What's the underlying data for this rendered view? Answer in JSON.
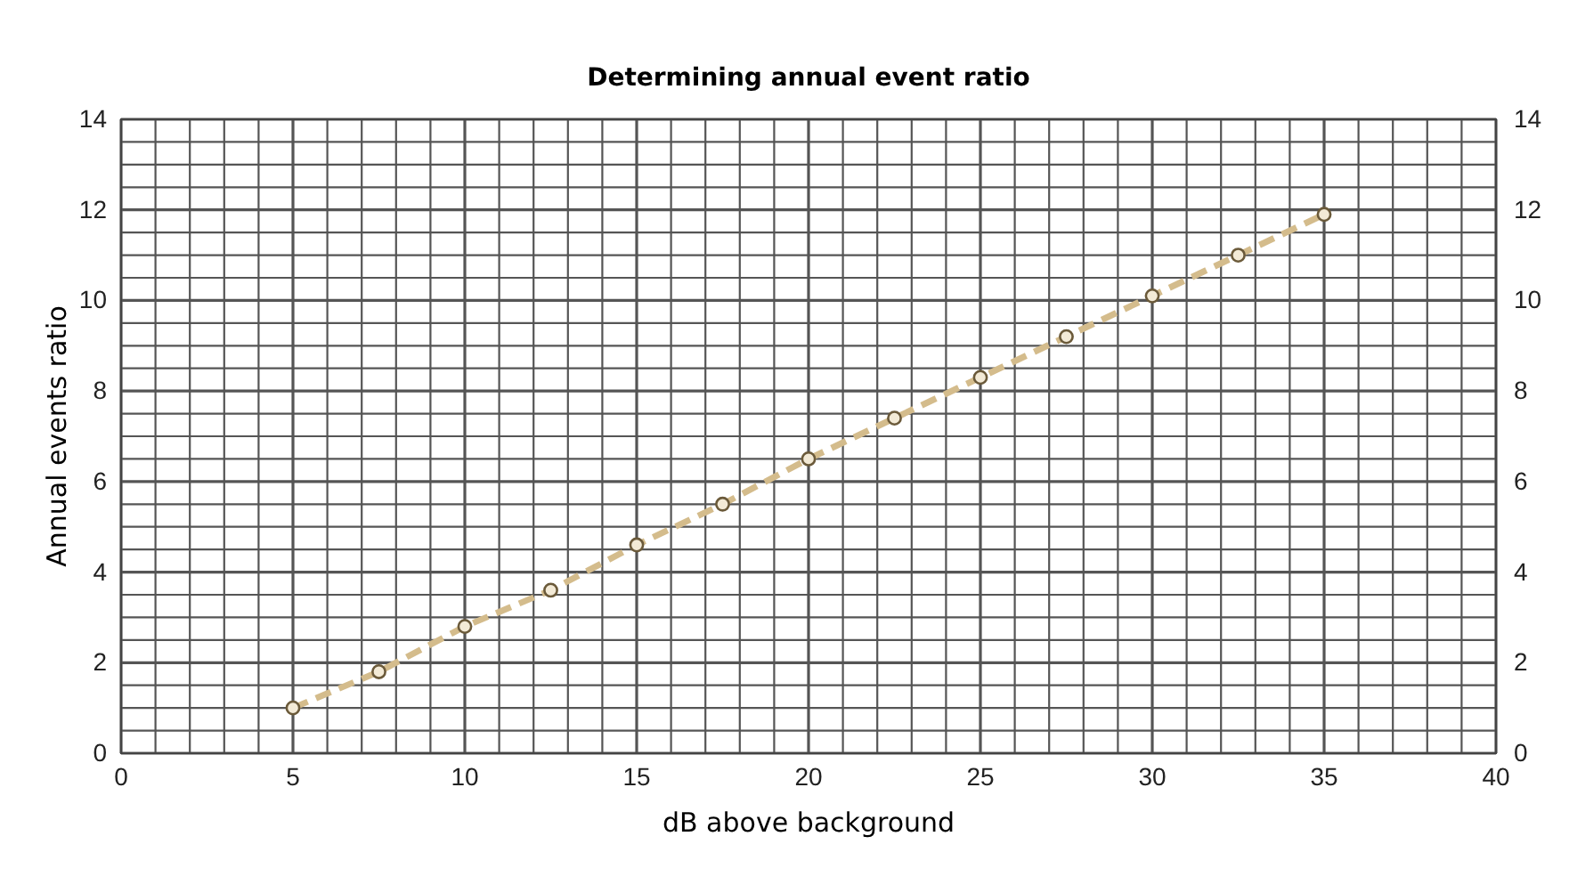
{
  "chart_data": {
    "type": "line",
    "title": "Determining annual event ratio",
    "xlabel": "dB above background",
    "ylabel": "Annual events ratio",
    "x": [
      5,
      7.5,
      10,
      12.5,
      15,
      17.5,
      20,
      22.5,
      25,
      27.5,
      30,
      32.5,
      35
    ],
    "series": [
      {
        "color": "#d4bc8c",
        "values": [
          1,
          1.8,
          2.8,
          3.6,
          4.6,
          5.5,
          6.5,
          7.4,
          8.3,
          9.2,
          10.1,
          11,
          11.9
        ]
      }
    ],
    "marker": "circle",
    "line_style": "dashed",
    "grid": true,
    "xlim": [
      0,
      40
    ],
    "xticks": [
      0,
      {
        "value": 1,
        "label": null
      },
      {
        "value": 2,
        "label": null
      },
      {
        "value": 3,
        "label": null
      },
      {
        "value": 4,
        "label": null
      },
      5,
      {
        "value": 6,
        "label": null
      },
      {
        "value": 7,
        "label": null
      },
      {
        "value": 8,
        "label": null
      },
      {
        "value": 9,
        "label": null
      },
      10,
      {
        "value": 11,
        "label": null
      },
      {
        "value": 12,
        "label": null
      },
      {
        "value": 13,
        "label": null
      },
      {
        "value": 14,
        "label": null
      },
      15,
      {
        "value": 16,
        "label": null
      },
      {
        "value": 17,
        "label": null
      },
      {
        "value": 18,
        "label": null
      },
      {
        "value": 19,
        "label": null
      },
      20,
      {
        "value": 21,
        "label": null
      },
      {
        "value": 22,
        "label": null
      },
      {
        "value": 23,
        "label": null
      },
      {
        "value": 24,
        "label": null
      },
      25,
      {
        "value": 26,
        "label": null
      },
      {
        "value": 27,
        "label": null
      },
      {
        "value": 28,
        "label": null
      },
      {
        "value": 29,
        "label": null
      },
      30,
      {
        "value": 31,
        "label": null
      },
      {
        "value": 32,
        "label": null
      },
      {
        "value": 33,
        "label": null
      },
      {
        "value": 34,
        "label": null
      },
      35,
      {
        "value": 36,
        "label": null
      },
      {
        "value": 37,
        "label": null
      },
      {
        "value": 38,
        "label": null
      },
      {
        "value": 39,
        "label": null
      },
      40
    ],
    "ylim": [
      0,
      14
    ],
    "yticks": [
      0,
      {
        "value": 0.5,
        "label": null
      },
      {
        "value": 1,
        "label": null
      },
      {
        "value": 1.5,
        "label": null
      },
      2,
      {
        "value": 2.5,
        "label": null
      },
      {
        "value": 3,
        "label": null
      },
      {
        "value": 3.5,
        "label": null
      },
      4,
      {
        "value": 4.5,
        "label": null
      },
      {
        "value": 5,
        "label": null
      },
      {
        "value": 5.5,
        "label": null
      },
      6,
      {
        "value": 6.5,
        "label": null
      },
      {
        "value": 7,
        "label": null
      },
      {
        "value": 7.5,
        "label": null
      },
      8,
      {
        "value": 8.5,
        "label": null
      },
      {
        "value": 9,
        "label": null
      },
      {
        "value": 9.5,
        "label": null
      },
      10,
      {
        "value": 10.5,
        "label": null
      },
      {
        "value": 11,
        "label": null
      },
      {
        "value": 11.5,
        "label": null
      },
      12,
      {
        "value": 12.5,
        "label": null
      },
      {
        "value": 13,
        "label": null
      },
      {
        "value": 13.5,
        "label": null
      },
      14
    ],
    "y2lim": [
      0,
      14
    ],
    "y2ticks": [
      0,
      2,
      4,
      6,
      8,
      10,
      12,
      14
    ]
  }
}
